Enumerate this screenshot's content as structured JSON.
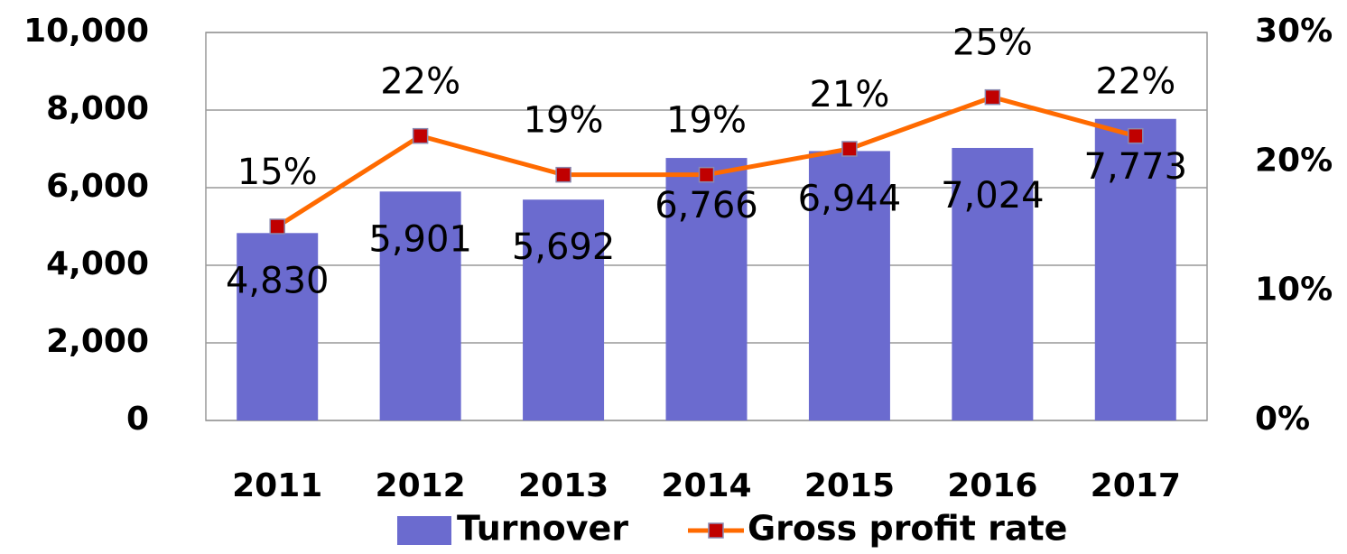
{
  "chart_data": {
    "type": "bar",
    "categories": [
      "2011",
      "2012",
      "2013",
      "2014",
      "2015",
      "2016",
      "2017"
    ],
    "series": [
      {
        "name": "Turnover",
        "type": "bar",
        "color": "#6b6bcf",
        "values": [
          4830,
          5901,
          5692,
          6766,
          6944,
          7024,
          7773
        ],
        "value_labels": [
          "4,830",
          "5,901",
          "5,692",
          "6,766",
          "6,944",
          "7,024",
          "7,773"
        ]
      },
      {
        "name": "Gross profit rate",
        "type": "line",
        "axis": "y2",
        "color": "#ff6a00",
        "marker_color": "#c00000",
        "values": [
          15,
          22,
          19,
          19,
          21,
          25,
          22
        ],
        "value_labels": [
          "15%",
          "22%",
          "19%",
          "19%",
          "21%",
          "25%",
          "22%"
        ]
      }
    ],
    "ylim": [
      0,
      10000
    ],
    "yticks": [
      0,
      {
        "value": 2000,
        "label": "2,000"
      },
      {
        "value": 4000,
        "label": "4,000"
      },
      {
        "value": 6000,
        "label": "6,000"
      },
      {
        "value": 8000,
        "label": "8,000"
      },
      {
        "value": 10000,
        "label": "10,000"
      }
    ],
    "y2lim": [
      0,
      30
    ],
    "y2ticks": [
      {
        "value": 0,
        "label": "0%"
      },
      {
        "value": 10,
        "label": "10%"
      },
      {
        "value": 20,
        "label": "20%"
      },
      {
        "value": 30,
        "label": "30%"
      }
    ],
    "grid": true,
    "legend": "bottom"
  }
}
